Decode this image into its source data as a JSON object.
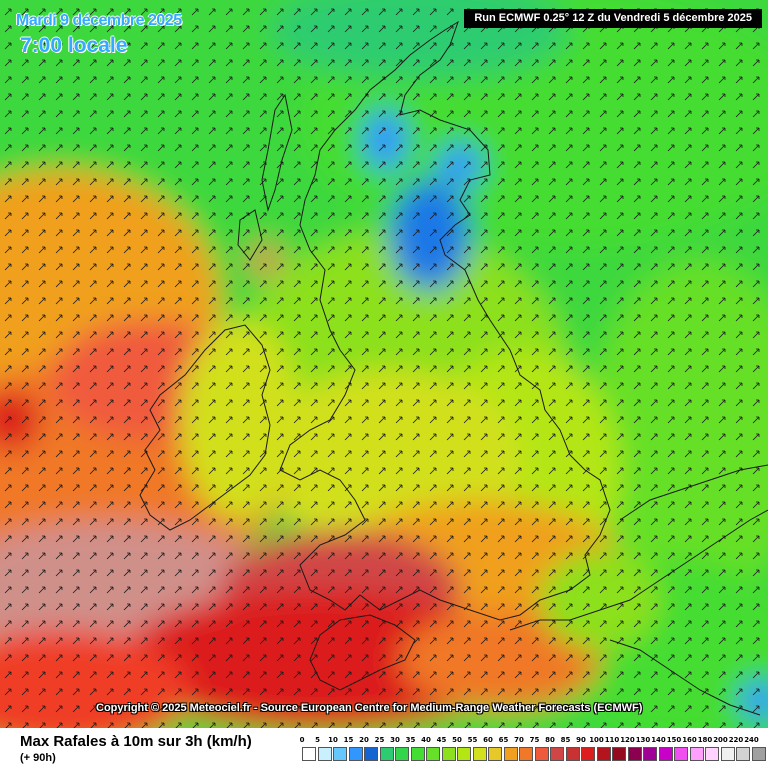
{
  "header": {
    "date": "Mardi 9 décembre 2025",
    "time": "7:00 locale",
    "run": "Run ECMWF 0.25° 12 Z du Vendredi 5 décembre 2025"
  },
  "copyright": "Copyright © 2025 Meteociel.fr - Source European Centre for Medium-Range Weather Forecasts (ECMWF)",
  "footer": {
    "parameter": "Max Rafales à 10m sur 3h (km/h)",
    "lead_time": "(+ 90h)"
  },
  "legend": {
    "labels": [
      "0",
      "5",
      "10",
      "15",
      "20",
      "25",
      "30",
      "35",
      "40",
      "45",
      "50",
      "55",
      "60",
      "65",
      "70",
      "75",
      "80",
      "85",
      "90",
      "100",
      "110",
      "120",
      "130",
      "140",
      "150",
      "160",
      "180",
      "200",
      "220",
      "240"
    ],
    "colors": [
      "#ffffff",
      "#c8f0ff",
      "#64c8ff",
      "#3296ff",
      "#1464d2",
      "#2dcc70",
      "#33d64a",
      "#44dd33",
      "#66e028",
      "#8ce01e",
      "#b4e614",
      "#d2e01e",
      "#e6c828",
      "#f0a01e",
      "#f07828",
      "#f05a3c",
      "#d04646",
      "#c83232",
      "#dc1e1e",
      "#b4141e",
      "#960a1e",
      "#8c0050",
      "#a00096",
      "#c800c8",
      "#f050f0",
      "#ffa0ff",
      "#ffd2ff",
      "#f0f0f0",
      "#d2d2d2",
      "#a0a0a0"
    ]
  },
  "wind_arrow_direction": "north-east"
}
